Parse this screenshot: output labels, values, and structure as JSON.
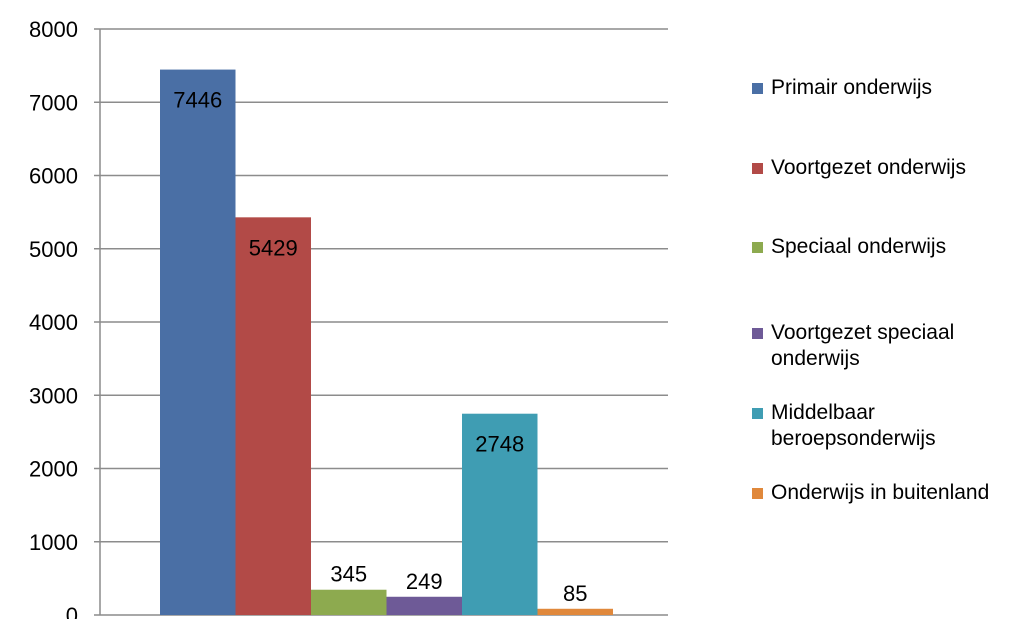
{
  "chart_data": {
    "type": "bar",
    "title": "",
    "xlabel": "",
    "ylabel": "",
    "ylim": [
      0,
      8000
    ],
    "yticks": [
      0,
      1000,
      2000,
      3000,
      4000,
      5000,
      6000,
      7000,
      8000
    ],
    "grid": true,
    "legend_position": "right",
    "series": [
      {
        "name": "Primair onderwijs",
        "value": 7446,
        "label": "7446",
        "color": "#4A6FA5"
      },
      {
        "name": "Voortgezet onderwijs",
        "value": 5429,
        "label": "5429",
        "color": "#B24A47"
      },
      {
        "name": "Speciaal onderwijs",
        "value": 345,
        "label": "345",
        "color": "#8DAA4F"
      },
      {
        "name": "Voortgezet speciaal onderwijs",
        "value": 249,
        "label": "249",
        "color": "#6E5A97"
      },
      {
        "name": "Middelbaar beroepsonderwijs",
        "value": 2748,
        "label": "2748",
        "color": "#3F9DB3"
      },
      {
        "name": "Onderwijs in buitenland",
        "value": 85,
        "label": "85",
        "color": "#E0883B"
      }
    ]
  }
}
